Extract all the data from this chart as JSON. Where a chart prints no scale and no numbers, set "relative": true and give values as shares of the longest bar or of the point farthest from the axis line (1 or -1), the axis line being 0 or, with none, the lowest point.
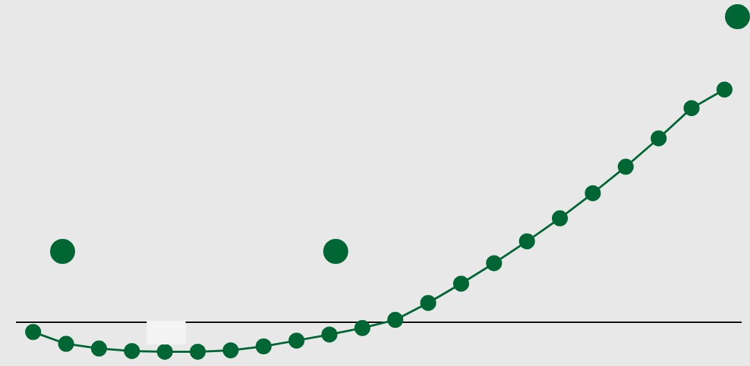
{
  "chart_data": {
    "type": "line",
    "relative": true,
    "categories": [
      null,
      null,
      null,
      null,
      null,
      null,
      null,
      null,
      null,
      null,
      null,
      null,
      null,
      null,
      null,
      null,
      null,
      null,
      null,
      null,
      null,
      null
    ],
    "series": [
      {
        "color": "#006633",
        "values": [
          -0.043,
          -0.094,
          -0.114,
          -0.125,
          -0.128,
          -0.128,
          -0.122,
          -0.105,
          -0.08,
          -0.054,
          -0.026,
          0.009,
          0.082,
          0.165,
          0.253,
          0.347,
          0.446,
          0.554,
          0.668,
          0.79,
          0.92,
          1
        ]
      }
    ],
    "marker": "circle",
    "legend": false,
    "grid": false
  }
}
